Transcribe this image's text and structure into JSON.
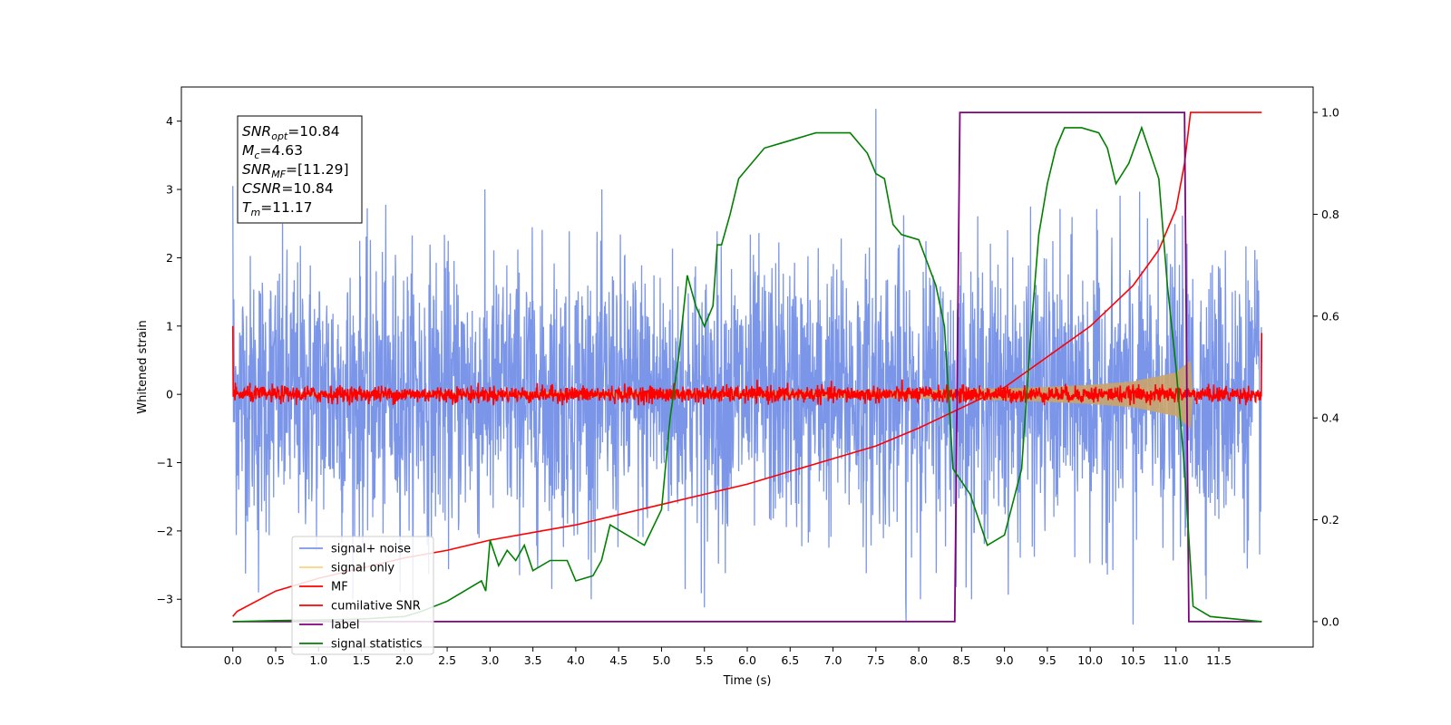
{
  "chart_data": {
    "type": "line",
    "title": "",
    "xlabel": "Time (s)",
    "ylabel": "Whitened strain",
    "y2label": "",
    "xlim": [
      -0.6,
      12.6
    ],
    "ylim": [
      -3.7,
      4.5
    ],
    "y2lim": [
      -0.05,
      1.05
    ],
    "xticks": [
      "0.0",
      "0.5",
      "1.0",
      "1.5",
      "2.0",
      "2.5",
      "3.0",
      "3.5",
      "4.0",
      "4.5",
      "5.0",
      "5.5",
      "6.0",
      "6.5",
      "7.0",
      "7.5",
      "8.0",
      "8.5",
      "9.0",
      "9.5",
      "10.0",
      "10.5",
      "11.0",
      "11.5"
    ],
    "yticks": [
      "4",
      "3",
      "2",
      "1",
      "0",
      "−1",
      "−2",
      "−3"
    ],
    "y2ticks": [
      "1.0",
      "0.8",
      "0.6",
      "0.4",
      "0.2",
      "0.0"
    ],
    "legend_position": "lower-left",
    "annotation": {
      "lines": [
        {
          "main": "SNR",
          "sub": "opt",
          "value": "=10.84"
        },
        {
          "main": "M",
          "sub": "c",
          "value": "=4.63"
        },
        {
          "main": "SNR",
          "sub": "MF",
          "value": "=[11.29]"
        },
        {
          "main": "CSNR",
          "sub": "",
          "value": "=10.84"
        },
        {
          "main": "T",
          "sub": "m",
          "value": "=11.17"
        }
      ]
    },
    "series": [
      {
        "name": "signal+ noise",
        "color": "#7b96e8",
        "axis": "left",
        "noise_amplitude": 1.0,
        "peaks": [
          [
            0.0,
            3.05
          ],
          [
            7.5,
            4.18
          ],
          [
            10.5,
            -3.37
          ],
          [
            7.85,
            -3.33
          ],
          [
            5.5,
            -3.12
          ],
          [
            0.3,
            -2.9
          ]
        ]
      },
      {
        "name": "signal only",
        "color": "#ffd27f",
        "axis": "left",
        "envelope": [
          [
            0.0,
            0.02
          ],
          [
            8.0,
            0.06
          ],
          [
            8.5,
            0.08
          ],
          [
            9.0,
            0.09
          ],
          [
            9.5,
            0.11
          ],
          [
            10.0,
            0.14
          ],
          [
            10.5,
            0.19
          ],
          [
            11.0,
            0.32
          ],
          [
            11.17,
            0.5
          ],
          [
            11.2,
            0.0
          ]
        ]
      },
      {
        "name": "MF",
        "color": "#ff0000",
        "axis": "left",
        "noise_amplitude": 0.1,
        "start_value": 1.0,
        "end_value": 0.9
      },
      {
        "name": "cumilative SNR",
        "color": "#ff0000",
        "axis": "right",
        "points": [
          [
            0.0,
            0.01
          ],
          [
            0.05,
            0.02
          ],
          [
            0.5,
            0.06
          ],
          [
            1.0,
            0.085
          ],
          [
            1.5,
            0.105
          ],
          [
            2.0,
            0.125
          ],
          [
            2.5,
            0.14
          ],
          [
            3.0,
            0.16
          ],
          [
            3.5,
            0.175
          ],
          [
            4.0,
            0.19
          ],
          [
            4.5,
            0.21
          ],
          [
            5.0,
            0.23
          ],
          [
            5.5,
            0.25
          ],
          [
            6.0,
            0.27
          ],
          [
            6.5,
            0.295
          ],
          [
            7.0,
            0.32
          ],
          [
            7.5,
            0.345
          ],
          [
            8.0,
            0.38
          ],
          [
            8.5,
            0.42
          ],
          [
            9.0,
            0.46
          ],
          [
            9.5,
            0.52
          ],
          [
            10.0,
            0.58
          ],
          [
            10.5,
            0.66
          ],
          [
            10.8,
            0.73
          ],
          [
            11.0,
            0.81
          ],
          [
            11.1,
            0.9
          ],
          [
            11.17,
            1.0
          ],
          [
            11.2,
            1.0
          ],
          [
            12.0,
            1.0
          ]
        ]
      },
      {
        "name": "label",
        "color": "#800080",
        "axis": "right",
        "points": [
          [
            0.0,
            0.0
          ],
          [
            8.42,
            0.0
          ],
          [
            8.48,
            1.0
          ],
          [
            11.1,
            1.0
          ],
          [
            11.15,
            0.0
          ],
          [
            12.0,
            0.0
          ]
        ]
      },
      {
        "name": "signal statistics",
        "color": "#008000",
        "axis": "right",
        "points": [
          [
            0.0,
            0.0
          ],
          [
            0.5,
            0.002
          ],
          [
            1.0,
            0.003
          ],
          [
            1.5,
            0.005
          ],
          [
            2.0,
            0.01
          ],
          [
            2.2,
            0.02
          ],
          [
            2.5,
            0.04
          ],
          [
            2.7,
            0.06
          ],
          [
            2.9,
            0.08
          ],
          [
            2.95,
            0.06
          ],
          [
            3.0,
            0.16
          ],
          [
            3.1,
            0.11
          ],
          [
            3.2,
            0.14
          ],
          [
            3.3,
            0.12
          ],
          [
            3.4,
            0.15
          ],
          [
            3.5,
            0.1
          ],
          [
            3.7,
            0.12
          ],
          [
            3.9,
            0.12
          ],
          [
            4.0,
            0.08
          ],
          [
            4.2,
            0.09
          ],
          [
            4.3,
            0.12
          ],
          [
            4.4,
            0.19
          ],
          [
            4.6,
            0.17
          ],
          [
            4.8,
            0.15
          ],
          [
            5.0,
            0.22
          ],
          [
            5.1,
            0.4
          ],
          [
            5.2,
            0.52
          ],
          [
            5.3,
            0.68
          ],
          [
            5.4,
            0.62
          ],
          [
            5.5,
            0.58
          ],
          [
            5.6,
            0.62
          ],
          [
            5.65,
            0.74
          ],
          [
            5.7,
            0.74
          ],
          [
            5.8,
            0.8
          ],
          [
            5.9,
            0.87
          ],
          [
            6.0,
            0.89
          ],
          [
            6.2,
            0.93
          ],
          [
            6.4,
            0.94
          ],
          [
            6.6,
            0.95
          ],
          [
            6.8,
            0.96
          ],
          [
            7.0,
            0.96
          ],
          [
            7.2,
            0.96
          ],
          [
            7.4,
            0.92
          ],
          [
            7.5,
            0.88
          ],
          [
            7.6,
            0.87
          ],
          [
            7.7,
            0.78
          ],
          [
            7.8,
            0.76
          ],
          [
            8.0,
            0.75
          ],
          [
            8.2,
            0.66
          ],
          [
            8.3,
            0.58
          ],
          [
            8.4,
            0.3
          ],
          [
            8.6,
            0.25
          ],
          [
            8.8,
            0.15
          ],
          [
            9.0,
            0.17
          ],
          [
            9.2,
            0.3
          ],
          [
            9.3,
            0.55
          ],
          [
            9.4,
            0.76
          ],
          [
            9.5,
            0.86
          ],
          [
            9.6,
            0.93
          ],
          [
            9.7,
            0.97
          ],
          [
            9.9,
            0.97
          ],
          [
            10.1,
            0.96
          ],
          [
            10.2,
            0.93
          ],
          [
            10.3,
            0.86
          ],
          [
            10.45,
            0.9
          ],
          [
            10.6,
            0.97
          ],
          [
            10.7,
            0.92
          ],
          [
            10.8,
            0.87
          ],
          [
            10.9,
            0.66
          ],
          [
            11.0,
            0.5
          ],
          [
            11.1,
            0.3
          ],
          [
            11.2,
            0.03
          ],
          [
            11.4,
            0.01
          ],
          [
            12.0,
            0.0
          ]
        ]
      }
    ]
  }
}
